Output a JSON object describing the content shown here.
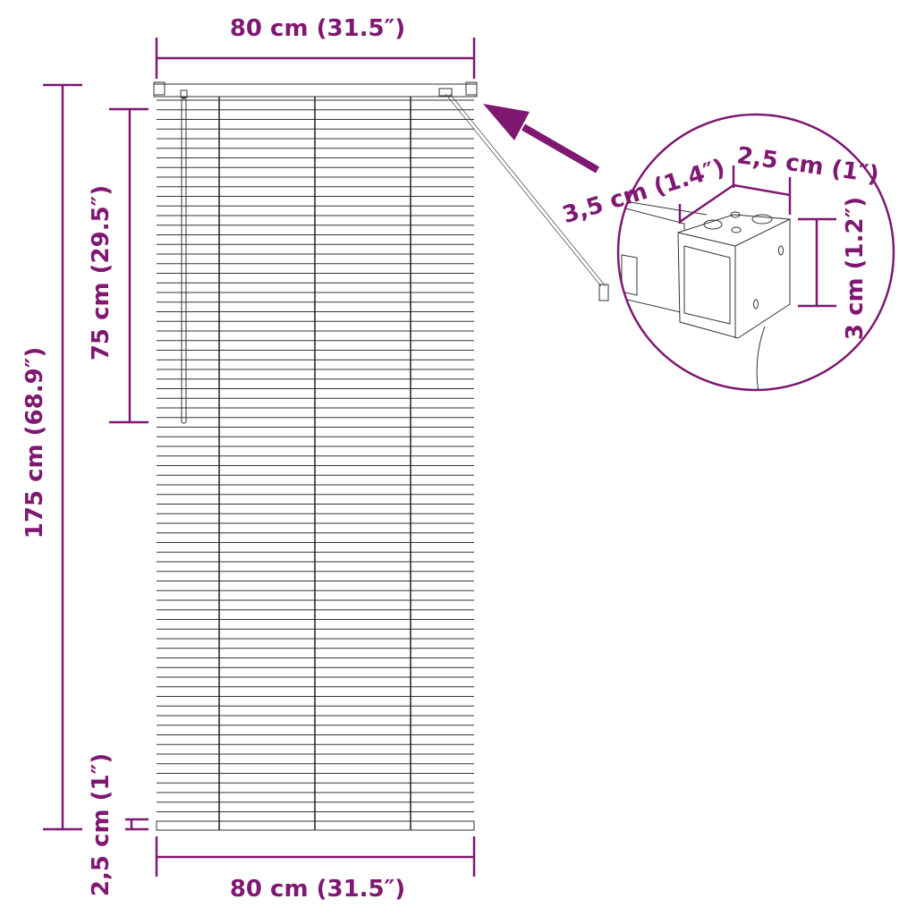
{
  "colors": {
    "accent": "#7e1870",
    "line": "#333333"
  },
  "dimensions": {
    "top_width": "80 cm (31.5″)",
    "bottom_width": "80 cm (31.5″)",
    "total_height": "175 cm (68.9″)",
    "wand_length": "75 cm (29.5″)",
    "bottom_rail": "2,5 cm (1″)"
  },
  "detail": {
    "depth": "3,5 cm (1.4″)",
    "width": "2,5 cm (1″)",
    "height": "3 cm (1.2″)"
  }
}
